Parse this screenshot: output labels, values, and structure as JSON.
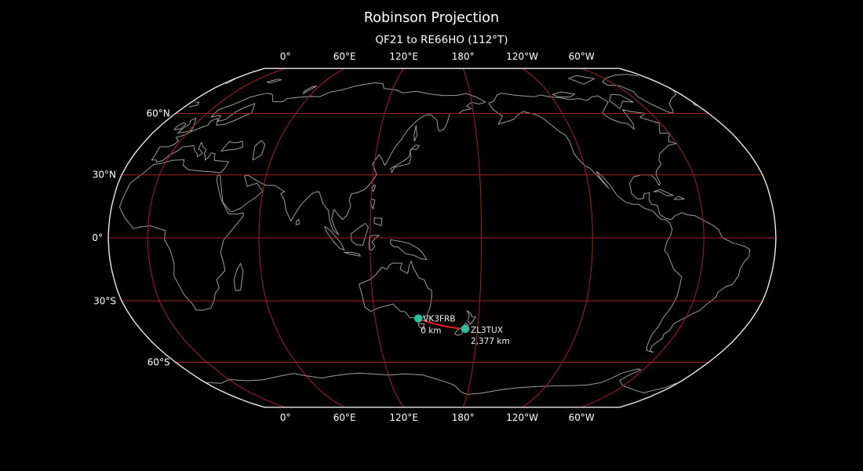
{
  "figure": {
    "title": "Robinson Projection",
    "subtitle": "QF21 to RE66HO (112°T)",
    "background_color": "#000000",
    "text_color": "#ffffff"
  },
  "map": {
    "projection_name": "Robinson",
    "central_longitude": 158.8,
    "outline_color": "#e9e9e9",
    "coastline_color": "#9c9c9c",
    "graticule_color": "#a32323"
  },
  "axis": {
    "meridians": [
      {
        "label": "0°",
        "lon": 0
      },
      {
        "label": "60°E",
        "lon": 60
      },
      {
        "label": "120°E",
        "lon": 120
      },
      {
        "label": "180°",
        "lon": 180
      },
      {
        "label": "120°W",
        "lon": -120
      },
      {
        "label": "60°W",
        "lon": -60
      }
    ],
    "parallels": [
      {
        "label": "60°N",
        "lat": 60
      },
      {
        "label": "30°N",
        "lat": 30
      },
      {
        "label": "0°",
        "lat": 0
      },
      {
        "label": "30°S",
        "lat": -30
      },
      {
        "label": "60°S",
        "lat": -60
      }
    ]
  },
  "route": {
    "line_color": "#e3231d",
    "marker_color": "#22c79b",
    "endpoints": [
      {
        "callsign": "VK3FRB",
        "distance": "0 km",
        "lon": 145.0,
        "lat": -38.4
      },
      {
        "callsign": "ZL3TUX",
        "distance": "2,377 km",
        "lon": 172.6,
        "lat": -43.4
      }
    ]
  }
}
